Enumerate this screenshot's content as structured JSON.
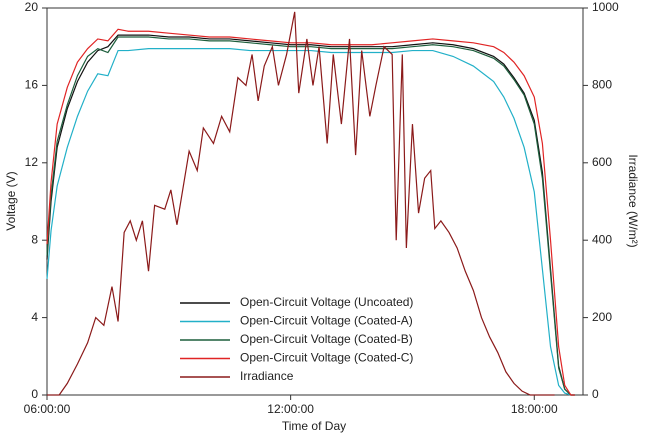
{
  "chart_data": {
    "type": "line",
    "xlabel": "Time of Day",
    "ylabel": "Voltage (V)",
    "y2label": "Irradiance (W/m²)",
    "x": [
      6.0,
      6.1,
      6.25,
      6.5,
      6.75,
      7.0,
      7.25,
      7.5,
      7.75,
      8.0,
      8.5,
      9.0,
      9.5,
      10.0,
      10.5,
      11.0,
      11.5,
      12.0,
      12.5,
      13.0,
      13.5,
      14.0,
      14.5,
      15.0,
      15.5,
      16.0,
      16.5,
      17.0,
      17.25,
      17.5,
      17.75,
      18.0,
      18.2,
      18.4,
      18.6,
      18.75,
      18.9,
      19.0
    ],
    "xlim": [
      6,
      19.2
    ],
    "xticks": [
      {
        "value": 6,
        "label": "06:00:00"
      },
      {
        "value": 12,
        "label": "12:00:00"
      },
      {
        "value": 18,
        "label": "18:00:00"
      }
    ],
    "ylim": [
      0,
      20
    ],
    "yticks": [
      0,
      4,
      8,
      12,
      16,
      20
    ],
    "y2lim": [
      0,
      1000
    ],
    "y2ticks": [
      0,
      200,
      400,
      600,
      800,
      1000
    ],
    "legend": "lower center",
    "series": [
      {
        "name": "Open-Circuit Voltage (Uncoated)",
        "color": "#111111",
        "values": [
          7,
          10,
          12.8,
          14.8,
          16.2,
          17.2,
          17.8,
          18.0,
          18.6,
          18.6,
          18.6,
          18.5,
          18.5,
          18.4,
          18.4,
          18.3,
          18.2,
          18.1,
          18.1,
          18.0,
          18.0,
          18.0,
          18.0,
          18.1,
          18.2,
          18.1,
          17.9,
          17.5,
          17.1,
          16.4,
          15.6,
          14.2,
          11.5,
          6.5,
          1.5,
          0.3,
          0,
          0
        ]
      },
      {
        "name": "Open-Circuit Voltage (Coated-A)",
        "color": "#22b0c8",
        "values": [
          6,
          8.5,
          10.8,
          12.8,
          14.4,
          15.7,
          16.6,
          16.5,
          17.8,
          17.8,
          17.9,
          17.9,
          17.9,
          17.9,
          17.9,
          17.8,
          17.8,
          17.8,
          17.8,
          17.7,
          17.7,
          17.7,
          17.7,
          17.8,
          17.8,
          17.5,
          17.0,
          16.2,
          15.4,
          14.3,
          12.8,
          10.5,
          6.5,
          2.5,
          0.5,
          0.1,
          0,
          0
        ]
      },
      {
        "name": "Open-Circuit Voltage (Coated-B)",
        "color": "#1d5e3c",
        "values": [
          7.2,
          10.3,
          13.1,
          15.0,
          16.5,
          17.5,
          17.9,
          17.7,
          18.5,
          18.5,
          18.5,
          18.4,
          18.4,
          18.3,
          18.3,
          18.2,
          18.1,
          18.0,
          18.0,
          17.9,
          17.9,
          17.9,
          17.9,
          18.0,
          18.1,
          18.0,
          17.8,
          17.4,
          17.0,
          16.3,
          15.5,
          14.0,
          11.2,
          6.3,
          1.4,
          0.3,
          0,
          0
        ]
      },
      {
        "name": "Open-Circuit Voltage (Coated-C)",
        "color": "#e02424",
        "values": [
          7.8,
          11,
          14.0,
          15.9,
          17.2,
          17.9,
          18.4,
          18.3,
          18.9,
          18.8,
          18.8,
          18.7,
          18.6,
          18.5,
          18.5,
          18.4,
          18.3,
          18.2,
          18.2,
          18.1,
          18.1,
          18.1,
          18.2,
          18.3,
          18.4,
          18.3,
          18.2,
          18.0,
          17.7,
          17.2,
          16.5,
          15.4,
          13,
          8,
          2.5,
          0.5,
          0,
          0
        ]
      },
      {
        "name": "Irradiance",
        "color": "#8b1a1a",
        "axis": "y2",
        "x": [
          6.0,
          6.3,
          6.5,
          6.75,
          7.0,
          7.2,
          7.4,
          7.6,
          7.75,
          7.9,
          8.05,
          8.2,
          8.35,
          8.5,
          8.65,
          8.9,
          9.05,
          9.2,
          9.5,
          9.7,
          9.85,
          10.1,
          10.3,
          10.5,
          10.7,
          10.9,
          11.05,
          11.2,
          11.35,
          11.55,
          11.7,
          11.9,
          12.1,
          12.2,
          12.4,
          12.55,
          12.7,
          12.9,
          13.05,
          13.25,
          13.45,
          13.6,
          13.75,
          13.95,
          14.1,
          14.3,
          14.5,
          14.6,
          14.75,
          14.85,
          15.0,
          15.15,
          15.3,
          15.45,
          15.55,
          15.7,
          15.9,
          16.1,
          16.3,
          16.5,
          16.7,
          16.9,
          17.1,
          17.3,
          17.5,
          17.7,
          17.9,
          18.1,
          18.5
        ],
        "values": [
          0,
          0,
          30,
          80,
          135,
          200,
          180,
          280,
          190,
          420,
          450,
          400,
          450,
          320,
          490,
          480,
          530,
          440,
          630,
          580,
          690,
          650,
          720,
          680,
          820,
          800,
          880,
          760,
          850,
          900,
          800,
          880,
          990,
          780,
          920,
          800,
          900,
          650,
          880,
          700,
          920,
          620,
          890,
          720,
          800,
          900,
          880,
          400,
          880,
          380,
          700,
          470,
          560,
          580,
          430,
          450,
          420,
          380,
          320,
          270,
          200,
          150,
          110,
          60,
          30,
          10,
          0,
          0,
          0
        ]
      }
    ]
  }
}
